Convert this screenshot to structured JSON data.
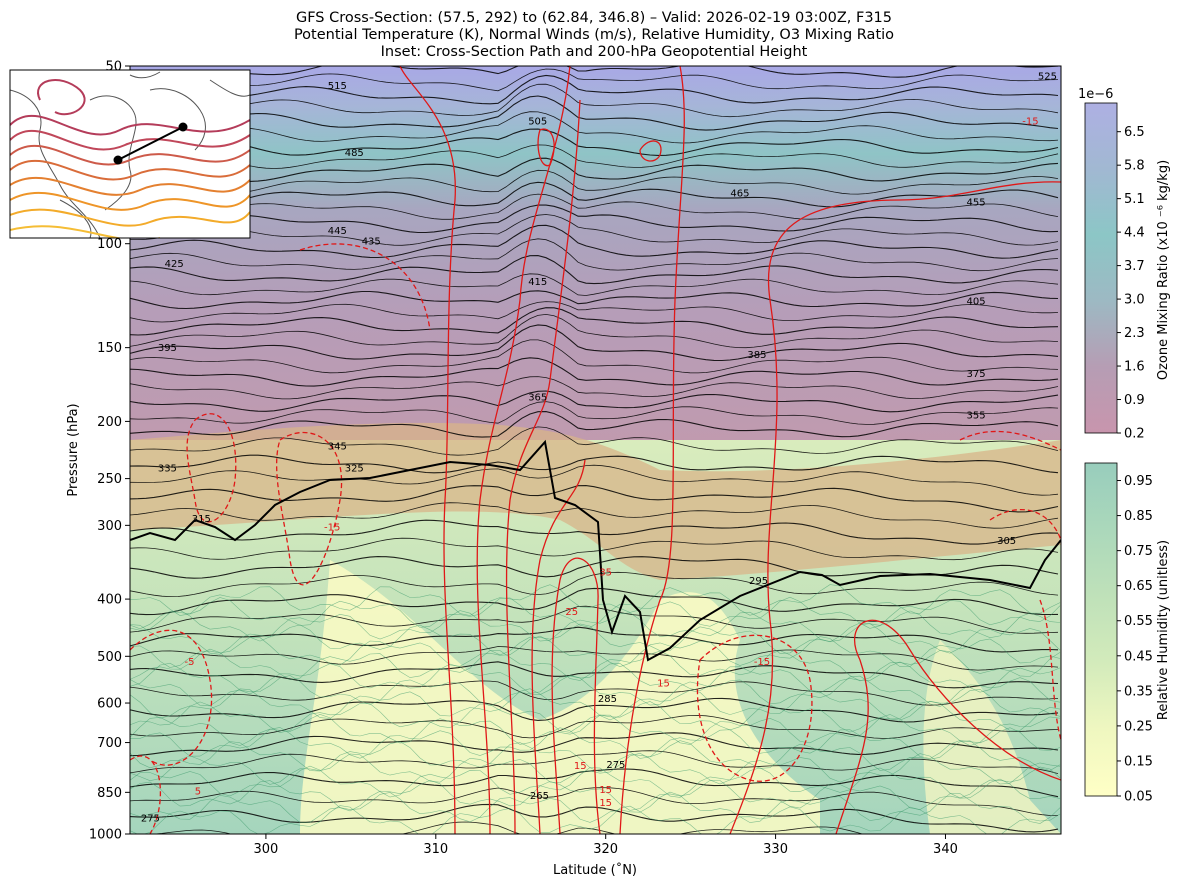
{
  "title": {
    "line1": "GFS Cross-Section: (57.5, 292) to (62.84, 346.8) – Valid: 2026-02-19 03:00Z, F315",
    "line2": "Potential Temperature (K), Normal Winds (m/s), Relative Humidity, O3 Mixing Ratio",
    "line3": "Inset: Cross-Section Path and 200-hPa Geopotential Height"
  },
  "chart_data": {
    "type": "heatmap",
    "xlabel": "Latitude (˚N)",
    "ylabel": "Pressure (hPa)",
    "xlim": [
      292,
      346.8
    ],
    "ylim": [
      1000,
      50
    ],
    "y_scale": "log",
    "x_ticks": [
      300,
      310,
      320,
      330,
      340
    ],
    "y_ticks": [
      50,
      100,
      150,
      200,
      250,
      300,
      400,
      500,
      600,
      700,
      850,
      1000
    ],
    "theta_contour_labels": [
      {
        "x": 304.2,
        "p": 54,
        "v": "515"
      },
      {
        "x": 316.0,
        "p": 62,
        "v": "505"
      },
      {
        "x": 346.0,
        "p": 52,
        "v": "525"
      },
      {
        "x": 305.2,
        "p": 70,
        "v": "485"
      },
      {
        "x": 327.9,
        "p": 82,
        "v": "465"
      },
      {
        "x": 341.8,
        "p": 85,
        "v": "455"
      },
      {
        "x": 304.2,
        "p": 95,
        "v": "445"
      },
      {
        "x": 306.2,
        "p": 99,
        "v": "435"
      },
      {
        "x": 294.6,
        "p": 108,
        "v": "425"
      },
      {
        "x": 316.0,
        "p": 116,
        "v": "415"
      },
      {
        "x": 341.8,
        "p": 125,
        "v": "405"
      },
      {
        "x": 294.2,
        "p": 150,
        "v": "395"
      },
      {
        "x": 328.9,
        "p": 154,
        "v": "385"
      },
      {
        "x": 341.8,
        "p": 166,
        "v": "375"
      },
      {
        "x": 316.0,
        "p": 182,
        "v": "365"
      },
      {
        "x": 341.8,
        "p": 195,
        "v": "355"
      },
      {
        "x": 304.2,
        "p": 220,
        "v": "345"
      },
      {
        "x": 294.2,
        "p": 240,
        "v": "335"
      },
      {
        "x": 305.2,
        "p": 240,
        "v": "325"
      },
      {
        "x": 296.2,
        "p": 292,
        "v": "315"
      },
      {
        "x": 343.6,
        "p": 318,
        "v": "305"
      },
      {
        "x": 329.0,
        "p": 372,
        "v": "295"
      },
      {
        "x": 320.1,
        "p": 590,
        "v": "285"
      },
      {
        "x": 320.6,
        "p": 763,
        "v": "275"
      },
      {
        "x": 293.2,
        "p": 940,
        "v": "275"
      },
      {
        "x": 316.1,
        "p": 860,
        "v": "265"
      }
    ],
    "wind_contour_labels": [
      {
        "x": 303.9,
        "p": 302,
        "v": "-15"
      },
      {
        "x": 320.0,
        "p": 360,
        "v": "35"
      },
      {
        "x": 318.0,
        "p": 420,
        "v": "25"
      },
      {
        "x": 323.4,
        "p": 555,
        "v": "15"
      },
      {
        "x": 329.2,
        "p": 510,
        "v": "-15"
      },
      {
        "x": 318.5,
        "p": 765,
        "v": "15"
      },
      {
        "x": 320.0,
        "p": 840,
        "v": "15"
      },
      {
        "x": 320.0,
        "p": 885,
        "v": "15"
      },
      {
        "x": 345.0,
        "p": 62,
        "v": "-15"
      },
      {
        "x": 295.5,
        "p": 510,
        "v": "-5"
      },
      {
        "x": 296.0,
        "p": 845,
        "v": "5"
      }
    ],
    "colorbars": [
      {
        "label": "Ozone Mixing Ratio (x10 ⁻⁶ kg/kg)",
        "multiplier": "1e−6",
        "ticks": [
          "0.2",
          "0.9",
          "1.6",
          "2.3",
          "3.0",
          "3.7",
          "4.4",
          "5.1",
          "5.8",
          "6.5"
        ],
        "range": [
          0.2,
          7.1
        ],
        "colors": [
          "#c895ad",
          "#b69db4",
          "#9db9c3",
          "#8cc6c6",
          "#a1b8d2",
          "#aeb0e3"
        ]
      },
      {
        "label": "Relative Humidity (unitless)",
        "ticks": [
          "0.05",
          "0.15",
          "0.25",
          "0.35",
          "0.45",
          "0.55",
          "0.65",
          "0.75",
          "0.85",
          "0.95"
        ],
        "range": [
          0.05,
          1.0
        ],
        "colors": [
          "#ffffc6",
          "#eff7c0",
          "#d3ebbb",
          "#bfe1b9",
          "#abd8bb",
          "#98cdbc"
        ]
      }
    ],
    "inset": {
      "path": [
        {
          "lat": 57.5,
          "lon": 292
        },
        {
          "lat": 62.84,
          "lon": 346.8
        }
      ]
    }
  }
}
